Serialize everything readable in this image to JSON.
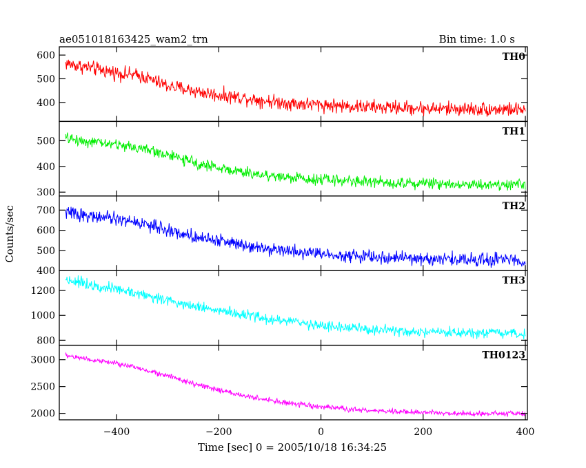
{
  "header": {
    "left_title": "ae051018163425_wam2_trn",
    "right_title": "Bin time: 1.0 s"
  },
  "xlabel": "Time [sec] 0 = 2005/10/18 16:34:25",
  "ylabel": "Counts/sec",
  "chart_data": {
    "type": "line",
    "x_range": [
      -512,
      404
    ],
    "x_ticks": [
      -400,
      -200,
      0,
      200,
      400
    ],
    "x_tick_labels": [
      "−400",
      "−200",
      "0",
      "200",
      "400"
    ],
    "bin_time_s": 1.0,
    "panels": [
      {
        "name": "TH0",
        "color": "#ff0000",
        "ylim": [
          320,
          635
        ],
        "yticks": [
          400,
          500,
          600
        ],
        "profile": [
          [
            -500,
            565
          ],
          [
            -450,
            545
          ],
          [
            -400,
            525
          ],
          [
            -350,
            510
          ],
          [
            -300,
            470
          ],
          [
            -250,
            450
          ],
          [
            -200,
            430
          ],
          [
            -150,
            420
          ],
          [
            -100,
            405
          ],
          [
            -50,
            395
          ],
          [
            0,
            390
          ],
          [
            50,
            385
          ],
          [
            100,
            380
          ],
          [
            150,
            378
          ],
          [
            200,
            375
          ],
          [
            250,
            373
          ],
          [
            300,
            372
          ],
          [
            350,
            371
          ],
          [
            400,
            370
          ]
        ],
        "noise_amplitude": 28
      },
      {
        "name": "TH1",
        "color": "#00ee00",
        "ylim": [
          285,
          575
        ],
        "yticks": [
          300,
          400,
          500
        ],
        "profile": [
          [
            -500,
            510
          ],
          [
            -450,
            495
          ],
          [
            -400,
            485
          ],
          [
            -350,
            470
          ],
          [
            -300,
            445
          ],
          [
            -250,
            415
          ],
          [
            -200,
            395
          ],
          [
            -150,
            375
          ],
          [
            -100,
            365
          ],
          [
            -50,
            355
          ],
          [
            0,
            350
          ],
          [
            50,
            345
          ],
          [
            100,
            340
          ],
          [
            150,
            337
          ],
          [
            200,
            335
          ],
          [
            250,
            333
          ],
          [
            300,
            330
          ],
          [
            350,
            330
          ],
          [
            400,
            330
          ]
        ],
        "noise_amplitude": 20
      },
      {
        "name": "TH2",
        "color": "#0000ff",
        "ylim": [
          400,
          770
        ],
        "yticks": [
          400,
          500,
          600,
          700
        ],
        "profile": [
          [
            -500,
            690
          ],
          [
            -450,
            670
          ],
          [
            -400,
            655
          ],
          [
            -350,
            635
          ],
          [
            -300,
            600
          ],
          [
            -250,
            570
          ],
          [
            -200,
            550
          ],
          [
            -150,
            530
          ],
          [
            -100,
            510
          ],
          [
            -50,
            495
          ],
          [
            0,
            485
          ],
          [
            50,
            475
          ],
          [
            100,
            468
          ],
          [
            150,
            462
          ],
          [
            200,
            458
          ],
          [
            250,
            456
          ],
          [
            300,
            455
          ],
          [
            350,
            454
          ],
          [
            400,
            452
          ]
        ],
        "noise_amplitude": 30
      },
      {
        "name": "TH3",
        "color": "#00ffff",
        "ylim": [
          760,
          1360
        ],
        "yticks": [
          800,
          1000,
          1200
        ],
        "profile": [
          [
            -500,
            1290
          ],
          [
            -450,
            1250
          ],
          [
            -400,
            1210
          ],
          [
            -350,
            1170
          ],
          [
            -300,
            1120
          ],
          [
            -250,
            1080
          ],
          [
            -200,
            1040
          ],
          [
            -150,
            1000
          ],
          [
            -100,
            970
          ],
          [
            -50,
            945
          ],
          [
            0,
            920
          ],
          [
            50,
            900
          ],
          [
            100,
            885
          ],
          [
            150,
            870
          ],
          [
            200,
            862
          ],
          [
            250,
            858
          ],
          [
            300,
            855
          ],
          [
            350,
            853
          ],
          [
            400,
            850
          ]
        ],
        "noise_amplitude": 40
      },
      {
        "name": "TH0123",
        "color": "#ff00ff",
        "ylim": [
          1880,
          3270
        ],
        "yticks": [
          2000,
          2500,
          3000
        ],
        "profile": [
          [
            -500,
            3080
          ],
          [
            -450,
            3000
          ],
          [
            -400,
            2930
          ],
          [
            -350,
            2830
          ],
          [
            -300,
            2700
          ],
          [
            -250,
            2550
          ],
          [
            -200,
            2430
          ],
          [
            -150,
            2330
          ],
          [
            -100,
            2240
          ],
          [
            -50,
            2170
          ],
          [
            0,
            2120
          ],
          [
            50,
            2080
          ],
          [
            100,
            2050
          ],
          [
            150,
            2030
          ],
          [
            200,
            2015
          ],
          [
            250,
            2005
          ],
          [
            300,
            2000
          ],
          [
            350,
            1998
          ],
          [
            400,
            1995
          ]
        ],
        "noise_amplitude": 45
      }
    ]
  }
}
